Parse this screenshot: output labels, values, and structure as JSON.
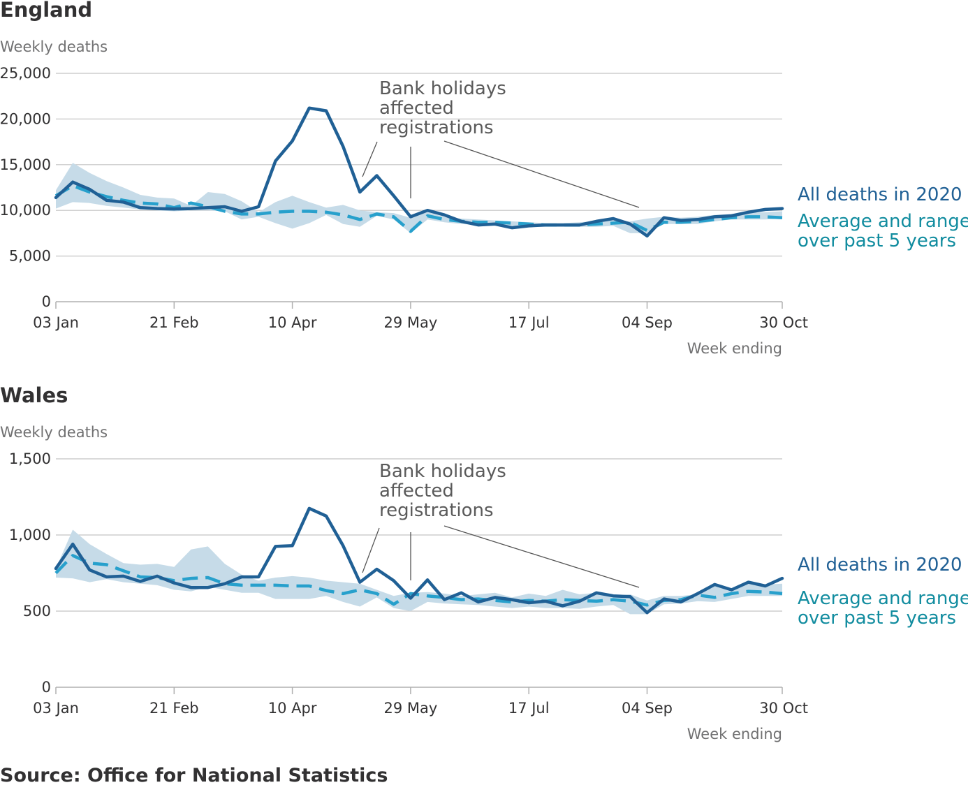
{
  "source": "Source: Office for National Statistics",
  "legend": {
    "all_2020": "All deaths in 2020",
    "avg_line1": "Average and range",
    "avg_line2": "over past 5 years"
  },
  "colors": {
    "all_2020": "#206095",
    "average": "#27a0cc",
    "range_band": "#c6dbe8",
    "avg_legend_text": "#118c9f",
    "gridline": "#c4c4c4"
  },
  "annotation": [
    "Bank holidays",
    "affected",
    "registrations"
  ],
  "x_axis_label": "Week ending",
  "chart_data": [
    {
      "type": "line",
      "title": "England",
      "ylabel": "Weekly deaths",
      "xlabel": "Week ending",
      "ylim": [
        0,
        25000
      ],
      "yticks": [
        0,
        5000,
        10000,
        15000,
        20000,
        25000
      ],
      "ytick_labels": [
        "0",
        "5,000",
        "10,000",
        "15,000",
        "20,000",
        "25,000"
      ],
      "xtick_labels": [
        "03 Jan",
        "21 Feb",
        "10 Apr",
        "29 May",
        "17 Jul",
        "04 Sep",
        "30 Oct"
      ],
      "xtick_weeks": [
        1,
        8,
        15,
        22,
        29,
        36,
        44
      ],
      "grid": true,
      "legend_position": "right",
      "series": [
        {
          "name": "All deaths in 2020",
          "style": "solid",
          "values": [
            11400,
            13100,
            12300,
            11100,
            10900,
            10300,
            10200,
            10150,
            10200,
            10300,
            10400,
            9900,
            10400,
            15400,
            17600,
            21200,
            20900,
            17000,
            12000,
            13800,
            11600,
            9300,
            10000,
            9500,
            8800,
            8400,
            8500,
            8100,
            8300,
            8400,
            8400,
            8400,
            8800,
            9100,
            8500,
            7200,
            9200,
            8900,
            9000,
            9300,
            9400,
            9800,
            10100,
            10200
          ]
        },
        {
          "name": "Average and range over past 5 years",
          "style": "dashed",
          "values": [
            11600,
            12700,
            12000,
            11500,
            11100,
            10800,
            10700,
            10300,
            10800,
            10400,
            9900,
            9600,
            9600,
            9800,
            9900,
            9900,
            9800,
            9500,
            9000,
            9600,
            9300,
            7700,
            9400,
            9000,
            8800,
            8700,
            8700,
            8600,
            8500,
            8400,
            8400,
            8400,
            8500,
            8600,
            8700,
            7800,
            8700,
            8700,
            8800,
            9000,
            9200,
            9300,
            9300,
            9200
          ]
        },
        {
          "name": "Range over past 5 years",
          "style": "band",
          "min": [
            10200,
            10900,
            10800,
            10500,
            10300,
            10100,
            10000,
            9900,
            10000,
            10000,
            9900,
            9000,
            9300,
            8600,
            8000,
            8600,
            9500,
            8500,
            8200,
            9400,
            9000,
            7500,
            9000,
            8700,
            8500,
            8400,
            8400,
            8300,
            8200,
            8200,
            8200,
            8200,
            8200,
            8300,
            7500,
            7500,
            8500,
            8500,
            8500,
            8800,
            9000,
            9000,
            9000,
            9100
          ],
          "max": [
            12200,
            15200,
            14100,
            13200,
            12500,
            11700,
            11400,
            11300,
            10500,
            12000,
            11800,
            11000,
            9800,
            10900,
            11600,
            10900,
            10300,
            10600,
            10000,
            9800,
            9700,
            9200,
            9800,
            9300,
            9100,
            9000,
            8900,
            8800,
            8700,
            8600,
            8600,
            8700,
            8800,
            8900,
            8800,
            9100,
            9300,
            9200,
            9300,
            9500,
            9600,
            9700,
            9800,
            9900
          ]
        }
      ]
    },
    {
      "type": "line",
      "title": "Wales",
      "ylabel": "Weekly deaths",
      "xlabel": "Week ending",
      "ylim": [
        0,
        1500
      ],
      "yticks": [
        0,
        500,
        1000,
        1500
      ],
      "ytick_labels": [
        "0",
        "500",
        "1,000",
        "1,500"
      ],
      "xtick_labels": [
        "03 Jan",
        "21 Feb",
        "10 Apr",
        "29 May",
        "17 Jul",
        "04 Sep",
        "30 Oct"
      ],
      "xtick_weeks": [
        1,
        8,
        15,
        22,
        29,
        36,
        44
      ],
      "grid": true,
      "legend_position": "right",
      "series": [
        {
          "name": "All deaths in 2020",
          "style": "solid",
          "values": [
            780,
            940,
            770,
            725,
            730,
            695,
            730,
            685,
            655,
            655,
            680,
            725,
            725,
            925,
            930,
            1175,
            1125,
            930,
            690,
            775,
            700,
            585,
            705,
            575,
            620,
            560,
            590,
            575,
            555,
            565,
            535,
            565,
            620,
            600,
            595,
            490,
            580,
            560,
            615,
            675,
            640,
            690,
            665,
            715
          ]
        },
        {
          "name": "Average and range over past 5 years",
          "style": "dashed",
          "values": [
            750,
            865,
            815,
            805,
            765,
            725,
            720,
            700,
            715,
            720,
            680,
            670,
            670,
            670,
            665,
            665,
            635,
            615,
            640,
            615,
            545,
            615,
            600,
            590,
            575,
            580,
            570,
            560,
            570,
            565,
            575,
            570,
            565,
            575,
            565,
            540,
            570,
            575,
            605,
            590,
            615,
            630,
            625,
            615
          ]
        },
        {
          "name": "Range over past 5 years",
          "style": "band",
          "min": [
            720,
            715,
            690,
            710,
            690,
            680,
            670,
            640,
            630,
            660,
            640,
            620,
            620,
            580,
            580,
            580,
            600,
            560,
            530,
            590,
            520,
            500,
            560,
            550,
            545,
            540,
            530,
            520,
            530,
            520,
            520,
            515,
            530,
            540,
            480,
            480,
            545,
            550,
            565,
            560,
            580,
            600,
            600,
            600
          ]
        },
        {
          "name": "_range_max",
          "style": "band_max",
          "max": [
            780,
            1035,
            940,
            875,
            815,
            805,
            810,
            790,
            905,
            925,
            810,
            740,
            700,
            720,
            730,
            720,
            700,
            690,
            680,
            640,
            600,
            620,
            625,
            615,
            600,
            610,
            620,
            590,
            615,
            600,
            640,
            610,
            620,
            600,
            610,
            570,
            600,
            600,
            610,
            670,
            650,
            680,
            675,
            680
          ]
        }
      ]
    }
  ]
}
